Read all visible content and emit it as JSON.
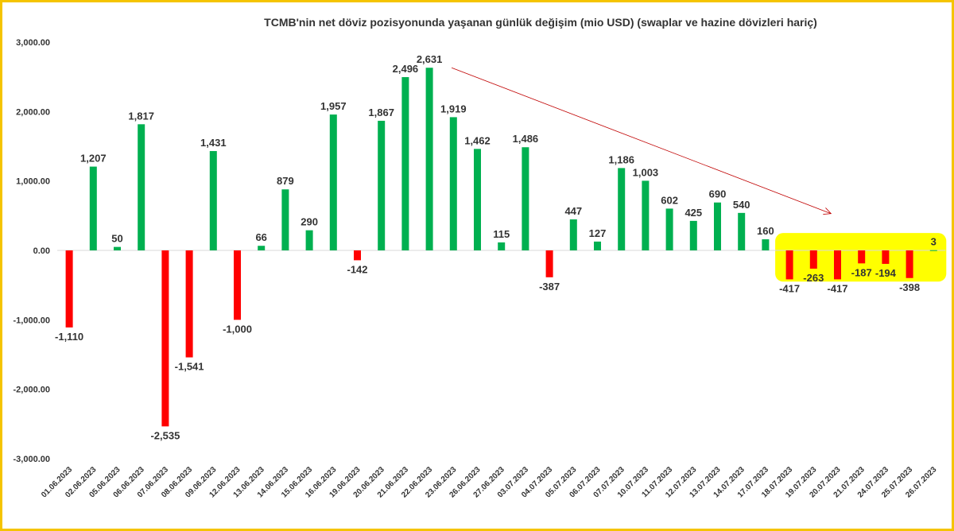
{
  "chart_data": {
    "type": "bar",
    "title": "TCMB'nin net döviz pozisyonunda yaşanan günlük değişim (mio USD) (swaplar ve hazine dövizleri hariç)",
    "categories": [
      "01.06.2023",
      "02.06.2023",
      "05.06.2023",
      "06.06.2023",
      "07.06.2023",
      "08.06.2023",
      "09.06.2023",
      "12.06.2023",
      "13.06.2023",
      "14.06.2023",
      "15.06.2023",
      "16.06.2023",
      "19.06.2023",
      "20.06.2023",
      "21.06.2023",
      "22.06.2023",
      "23.06.2023",
      "26.06.2023",
      "27.06.2023",
      "03.07.2023",
      "04.07.2023",
      "05.07.2023",
      "06.07.2023",
      "07.07.2023",
      "10.07.2023",
      "11.07.2023",
      "12.07.2023",
      "13.07.2023",
      "14.07.2023",
      "17.07.2023",
      "18.07.2023",
      "19.07.2023",
      "20.07.2023",
      "21.07.2023",
      "24.07.2023",
      "25.07.2023",
      "26.07.2023"
    ],
    "values": [
      -1110,
      1207,
      50,
      1817,
      -2535,
      -1541,
      1431,
      -1000,
      66,
      879,
      290,
      1957,
      -142,
      1867,
      2496,
      2631,
      1919,
      1462,
      115,
      1486,
      -387,
      447,
      127,
      1186,
      1003,
      602,
      425,
      690,
      540,
      160,
      -417,
      -263,
      -417,
      -187,
      -194,
      -398,
      3
    ],
    "labels": [
      "-1,110",
      "1,207",
      "50",
      "1,817",
      "-2,535",
      "-1,541",
      "1,431",
      "-1,000",
      "66",
      "879",
      "290",
      "1,957",
      "-142",
      "1,867",
      "2,496",
      "2,631",
      "1,919",
      "1,462",
      "115",
      "1,486",
      "-387",
      "447",
      "127",
      "1,186",
      "1,003",
      "602",
      "425",
      "690",
      "540",
      "160",
      "-417",
      "-263",
      "-417",
      "-187",
      "-194",
      "-398",
      "3"
    ],
    "ylim": [
      -3000,
      3000
    ],
    "yticks": [
      3000,
      2000,
      1000,
      0,
      -1000,
      -2000,
      -3000
    ],
    "ytick_labels": [
      "3,000.00",
      "2,000.00",
      "1,000.00",
      "0.00",
      "-1,000.00",
      "-2,000.00",
      "-3,000.00"
    ],
    "xlabel": "",
    "ylabel": "",
    "grid": false,
    "legend": "none",
    "colors": {
      "positive": "#00B050",
      "negative": "#FF0000",
      "highlight": "#FFFF00",
      "arrow": "#C00000",
      "frame": "#F5C400"
    },
    "annotation": {
      "type": "arrow",
      "from_category": "22.06.2023",
      "to_category": "19.07.2023",
      "highlight_range": [
        "18.07.2023",
        "26.07.2023"
      ]
    }
  }
}
